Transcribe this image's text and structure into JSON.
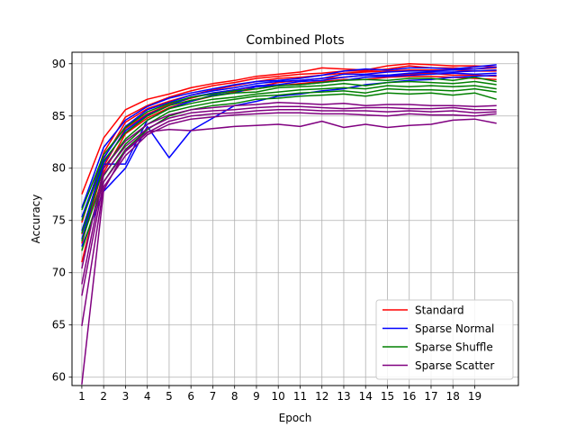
{
  "chart_data": {
    "type": "line",
    "title": "Combined Plots",
    "xlabel": "Epoch",
    "ylabel": "Accuracy",
    "xlim": [
      0.55,
      21.0
    ],
    "ylim": [
      59.2,
      91.1
    ],
    "x_ticks": [
      1,
      2,
      3,
      4,
      5,
      6,
      7,
      8,
      9,
      10,
      11,
      12,
      13,
      14,
      15,
      16,
      17,
      18,
      19
    ],
    "y_ticks": [
      60,
      65,
      70,
      75,
      80,
      85,
      90
    ],
    "grid": true,
    "legend_position": "lower-right",
    "x": [
      1,
      2,
      3,
      4,
      5,
      6,
      7,
      8,
      9,
      10,
      11,
      12,
      13,
      14,
      15,
      16,
      17,
      18,
      19,
      20
    ],
    "groups": [
      {
        "name": "Standard",
        "color": "#ff0000",
        "runs": [
          [
            77.5,
            82.9,
            85.6,
            86.6,
            87.1,
            87.7,
            88.1,
            88.4,
            88.8,
            89.0,
            89.2,
            89.6,
            89.5,
            89.4,
            89.8,
            90.0,
            89.9,
            89.8,
            89.8,
            89.7
          ],
          [
            74.8,
            81.5,
            84.9,
            86.0,
            86.8,
            87.4,
            87.9,
            88.2,
            88.6,
            88.8,
            89.0,
            89.1,
            89.3,
            89.3,
            89.5,
            89.8,
            89.6,
            89.6,
            89.5,
            89.6
          ],
          [
            73.7,
            80.9,
            84.4,
            85.7,
            86.4,
            87.0,
            87.5,
            87.9,
            88.3,
            88.6,
            88.7,
            88.9,
            89.1,
            89.2,
            89.3,
            89.4,
            89.4,
            89.4,
            89.3,
            89.3
          ],
          [
            72.8,
            80.2,
            83.8,
            85.2,
            86.1,
            86.7,
            87.2,
            87.5,
            87.8,
            88.2,
            88.4,
            88.6,
            88.7,
            88.9,
            88.9,
            89.0,
            89.1,
            88.9,
            88.9,
            88.8
          ],
          [
            71.0,
            79.6,
            83.3,
            84.8,
            85.8,
            86.4,
            86.9,
            87.3,
            87.6,
            87.9,
            88.1,
            88.3,
            88.5,
            88.5,
            88.7,
            88.8,
            88.8,
            88.7,
            88.6,
            88.5
          ]
        ]
      },
      {
        "name": "Sparse Normal",
        "color": "#0000ff",
        "runs": [
          [
            76.2,
            82.0,
            84.6,
            85.9,
            86.7,
            87.2,
            87.6,
            88.0,
            88.3,
            88.4,
            88.6,
            88.9,
            89.3,
            89.5,
            89.4,
            89.6,
            89.6,
            89.5,
            89.7,
            89.9
          ],
          [
            75.3,
            81.0,
            84.0,
            85.6,
            86.3,
            87.0,
            87.4,
            87.7,
            88.1,
            88.3,
            88.4,
            88.6,
            89.0,
            89.0,
            89.2,
            89.3,
            89.3,
            89.4,
            89.5,
            89.7
          ],
          [
            74.0,
            80.5,
            83.6,
            85.1,
            86.0,
            86.8,
            87.2,
            87.5,
            87.9,
            88.0,
            88.3,
            88.4,
            88.7,
            88.9,
            88.9,
            89.1,
            89.2,
            89.2,
            89.3,
            89.4
          ],
          [
            73.2,
            80.4,
            80.4,
            84.6,
            85.7,
            86.4,
            87.0,
            87.2,
            87.8,
            87.9,
            88.0,
            88.2,
            88.4,
            88.7,
            88.8,
            88.9,
            89.0,
            89.1,
            89.0,
            89.1
          ],
          [
            72.5,
            77.8,
            80.0,
            84.0,
            81.0,
            83.6,
            84.8,
            86.0,
            86.4,
            86.9,
            87.1,
            87.4,
            87.6,
            88.0,
            88.2,
            88.4,
            88.5,
            88.7,
            88.8,
            88.9
          ]
        ]
      },
      {
        "name": "Sparse Shuffle",
        "color": "#008000",
        "runs": [
          [
            76.0,
            81.3,
            83.9,
            85.4,
            86.2,
            86.8,
            87.1,
            87.4,
            87.6,
            87.9,
            88.0,
            88.2,
            88.4,
            88.5,
            88.4,
            88.6,
            88.6,
            88.4,
            88.7,
            88.3
          ],
          [
            75.0,
            80.7,
            83.4,
            85.0,
            86.0,
            86.5,
            86.9,
            87.2,
            87.3,
            87.7,
            87.8,
            87.9,
            88.1,
            87.9,
            88.2,
            88.3,
            88.2,
            88.1,
            88.3,
            88.0
          ],
          [
            73.8,
            80.0,
            82.8,
            84.6,
            85.7,
            86.2,
            86.6,
            86.8,
            87.1,
            87.3,
            87.5,
            87.6,
            87.7,
            87.6,
            87.9,
            87.8,
            87.9,
            87.8,
            87.9,
            87.6
          ],
          [
            73.0,
            79.3,
            82.3,
            84.2,
            85.4,
            85.9,
            86.3,
            86.6,
            86.9,
            87.0,
            87.2,
            87.3,
            87.4,
            87.2,
            87.6,
            87.5,
            87.5,
            87.4,
            87.6,
            87.3
          ],
          [
            72.1,
            78.7,
            81.8,
            83.7,
            85.0,
            85.6,
            86.0,
            86.2,
            86.6,
            86.7,
            86.9,
            87.0,
            87.1,
            86.9,
            87.2,
            87.1,
            87.2,
            87.0,
            87.2,
            86.6
          ]
        ]
      },
      {
        "name": "Sparse Scatter",
        "color": "#800080",
        "runs": [
          [
            70.4,
            80.0,
            82.6,
            84.2,
            85.1,
            85.6,
            85.8,
            86.0,
            86.1,
            86.3,
            86.2,
            86.1,
            86.2,
            86.0,
            86.1,
            86.1,
            86.0,
            86.0,
            85.9,
            86.0
          ],
          [
            68.9,
            79.4,
            82.1,
            83.8,
            84.8,
            85.3,
            85.5,
            85.6,
            85.8,
            85.9,
            85.9,
            85.8,
            85.7,
            85.8,
            85.8,
            85.7,
            85.7,
            85.8,
            85.6,
            85.6
          ],
          [
            67.8,
            78.7,
            81.6,
            83.4,
            84.5,
            85.0,
            85.2,
            85.3,
            85.5,
            85.6,
            85.6,
            85.5,
            85.5,
            85.5,
            85.4,
            85.5,
            85.4,
            85.5,
            85.3,
            85.4
          ],
          [
            64.9,
            78.2,
            81.2,
            83.2,
            84.2,
            84.7,
            84.9,
            85.1,
            85.2,
            85.3,
            85.3,
            85.2,
            85.2,
            85.1,
            85.0,
            85.2,
            85.1,
            85.1,
            85.0,
            85.2
          ],
          [
            59.3,
            77.9,
            81.7,
            83.5,
            83.7,
            83.6,
            83.8,
            84.0,
            84.1,
            84.2,
            84.0,
            84.5,
            83.9,
            84.2,
            83.9,
            84.1,
            84.2,
            84.6,
            84.7,
            84.3
          ]
        ]
      }
    ]
  }
}
